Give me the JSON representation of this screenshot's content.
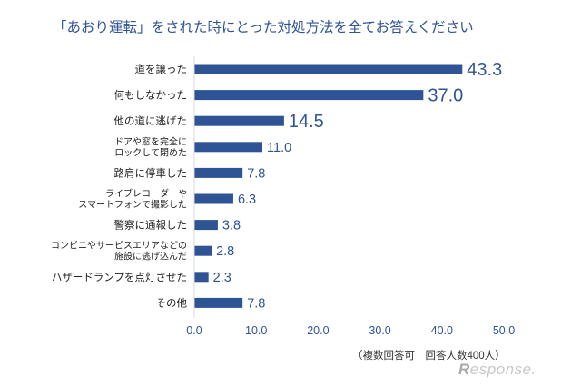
{
  "title": "「あおり運転」をされた時にとった対処方法を全てお答えください",
  "note": "（複数回答可　回答人数400人）",
  "watermark": {
    "prefix": "R",
    "rest": "esponse."
  },
  "colors": {
    "bar": "#2f5496",
    "text": "#2f5496",
    "axis": "#d9d9d9",
    "label": "#222222"
  },
  "chart_data": {
    "type": "bar",
    "orientation": "horizontal",
    "title": "「あおり運転」をされた時にとった対処方法を全てお答えください",
    "categories": [
      [
        "道を譲った"
      ],
      [
        "何もしなかった"
      ],
      [
        "他の道に逃げた"
      ],
      [
        "ドアや窓を完全に",
        "ロックして閉めた"
      ],
      [
        "路肩に停車した"
      ],
      [
        "ライブレコーダーや",
        "スマートフォンで撮影した"
      ],
      [
        "警察に通報した"
      ],
      [
        "コンビニやサービスエリアなどの",
        "施設に逃げ込んだ"
      ],
      [
        "ハザードランプを点灯させた"
      ],
      [
        "その他"
      ]
    ],
    "values": [
      43.3,
      37.0,
      14.5,
      11.0,
      7.8,
      6.3,
      3.8,
      2.8,
      2.3,
      7.8
    ],
    "value_labels": [
      "43.3",
      "37.0",
      "14.5",
      "11.0",
      "7.8",
      "6.3",
      "3.8",
      "2.8",
      "2.3",
      "7.8"
    ],
    "xlim": [
      0,
      50
    ],
    "xticks": [
      "0.0",
      "10.0",
      "20.0",
      "30.0",
      "40.0",
      "50.0"
    ],
    "grid": false,
    "legend": "none"
  }
}
